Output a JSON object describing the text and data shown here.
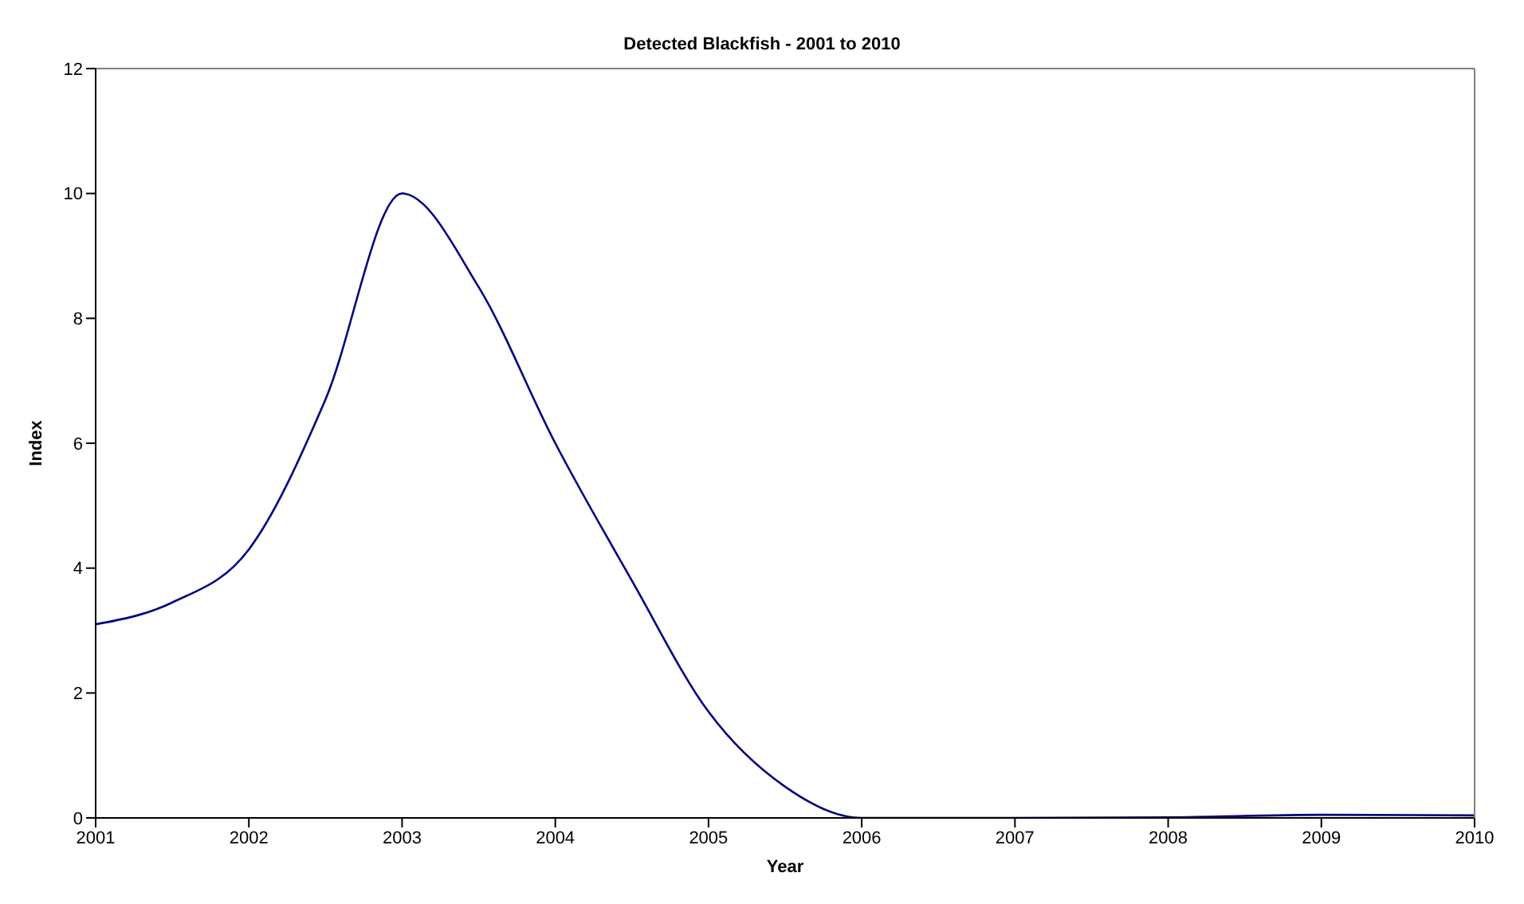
{
  "chart_data": {
    "type": "line",
    "title": "Detected Blackfish - 2001 to 2010",
    "xlabel": "Year",
    "ylabel": "Index",
    "x": [
      2001,
      2001.5,
      2002,
      2002.5,
      2003,
      2003.5,
      2004,
      2004.5,
      2005,
      2005.5,
      2006,
      2007,
      2008,
      2009,
      2010
    ],
    "series": [
      {
        "color": "#000080",
        "values": [
          3.1,
          3.45,
          4.3,
          6.7,
          10,
          8.5,
          6,
          3.8,
          1.7,
          0.5,
          0,
          0,
          0.01,
          0.05,
          0.04
        ]
      }
    ],
    "xlim": [
      2001,
      2010
    ],
    "xticks": [
      2001,
      2002,
      2003,
      2004,
      2005,
      2006,
      2007,
      2008,
      2009,
      2010
    ],
    "ylim": [
      0,
      12
    ],
    "yticks": [
      0,
      2,
      4,
      6,
      8,
      10,
      12
    ],
    "marker": "none",
    "line_style": "solid"
  }
}
